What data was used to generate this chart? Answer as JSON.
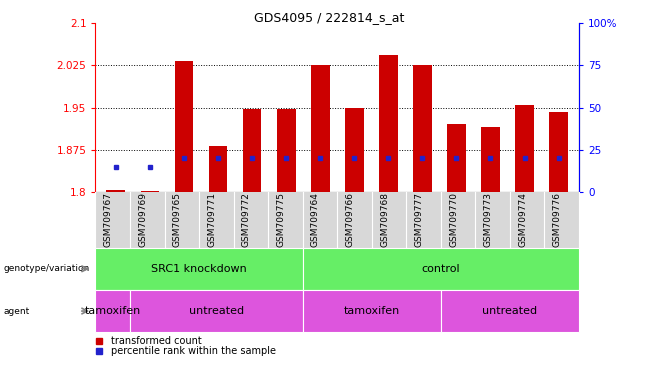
{
  "title": "GDS4095 / 222814_s_at",
  "samples": [
    "GSM709767",
    "GSM709769",
    "GSM709765",
    "GSM709771",
    "GSM709772",
    "GSM709775",
    "GSM709764",
    "GSM709766",
    "GSM709768",
    "GSM709777",
    "GSM709770",
    "GSM709773",
    "GSM709774",
    "GSM709776"
  ],
  "transformed_count": [
    1.803,
    1.801,
    2.033,
    1.882,
    1.948,
    1.948,
    2.025,
    1.95,
    2.043,
    2.025,
    1.921,
    1.916,
    1.955,
    1.942
  ],
  "percentile_rank_pct": [
    15,
    15,
    20,
    20,
    20,
    20,
    20,
    20,
    20,
    20,
    20,
    20,
    20,
    20
  ],
  "bar_base": 1.8,
  "ylim_left": [
    1.8,
    2.1
  ],
  "ylim_right": [
    0,
    100
  ],
  "yticks_left": [
    1.8,
    1.875,
    1.95,
    2.025,
    2.1
  ],
  "yticks_right": [
    0,
    25,
    50,
    75,
    100
  ],
  "bar_color": "#cc0000",
  "percentile_color": "#2222cc",
  "group_colors": {
    "green": "#66ee66",
    "pink": "#dd55dd"
  },
  "genotype_groups": [
    {
      "label": "SRC1 knockdown",
      "start": 0,
      "end": 5
    },
    {
      "label": "control",
      "start": 6,
      "end": 13
    }
  ],
  "agent_groups": [
    {
      "label": "tamoxifen",
      "start": 0,
      "end": 0
    },
    {
      "label": "untreated",
      "start": 1,
      "end": 5
    },
    {
      "label": "tamoxifen",
      "start": 6,
      "end": 9
    },
    {
      "label": "untreated",
      "start": 10,
      "end": 13
    }
  ],
  "legend": [
    {
      "label": "transformed count",
      "color": "#cc0000"
    },
    {
      "label": "percentile rank within the sample",
      "color": "#2222cc"
    }
  ]
}
